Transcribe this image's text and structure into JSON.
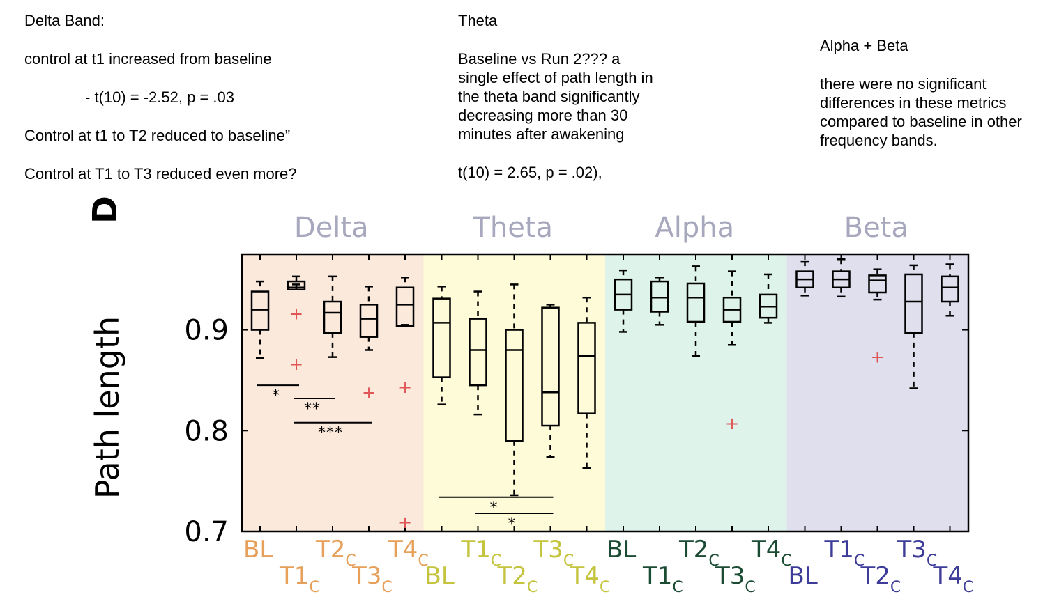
{
  "notes": {
    "delta": {
      "heading": "Delta Band:",
      "line1": "control at t1 increased from baseline",
      "line2": "- t(10) = -2.52, p = .03",
      "line3": "Control at t1 to T2 reduced to baseline”",
      "line4": "Control at T1 to T3 reduced even more?"
    },
    "theta": {
      "heading": "Theta",
      "body_lines": [
        "Baseline vs Run 2??? a",
        "single effect of path length in",
        "the theta band significantly",
        "decreasing more than 30",
        "minutes after awakening"
      ],
      "stat": "t(10) = 2.65, p = .02),"
    },
    "alphabeta": {
      "heading": "Alpha + Beta",
      "body_lines": [
        "there were no significant",
        "differences in these metrics",
        "compared to baseline in other",
        "frequency bands."
      ]
    }
  },
  "chart_data": {
    "type": "box",
    "panel_letter": "D",
    "ylabel": "Path length",
    "ylim": [
      0.7,
      0.975
    ],
    "yticks": [
      0.7,
      0.8,
      0.9
    ],
    "ytick_labels": [
      "0.7",
      "0.8",
      "0.9"
    ],
    "band_colors": {
      "Delta": "#fbe9dc",
      "Theta": "#fdfbd8",
      "Alpha": "#def3ea",
      "Beta": "#dfdfee"
    },
    "band_title_color": "#a7a7bd",
    "label_colors": {
      "Delta": "#e6a05a",
      "Theta": "#c4c43e",
      "Alpha": "#1b4b33",
      "Beta": "#3d3d99"
    },
    "outlier_color": "#e05555",
    "bands": [
      {
        "name": "Delta",
        "labels_top": [
          {
            "t": "BL",
            "s": ""
          },
          {
            "t": "T2",
            "s": "C"
          },
          {
            "t": "T4",
            "s": "C"
          }
        ],
        "labels_bottom": [
          {
            "t": "T1",
            "s": "C"
          },
          {
            "t": "T3",
            "s": "C"
          }
        ],
        "boxes": [
          {
            "label": "BL",
            "wlo": 0.872,
            "q1": 0.9,
            "med": 0.92,
            "q3": 0.938,
            "whi": 0.948,
            "outliers": []
          },
          {
            "label": "T1",
            "wlo": 0.945,
            "q1": 0.94,
            "med": 0.942,
            "q3": 0.948,
            "whi": 0.953,
            "outliers": [
              0.916,
              0.866
            ]
          },
          {
            "label": "T2",
            "wlo": 0.873,
            "q1": 0.897,
            "med": 0.917,
            "q3": 0.928,
            "whi": 0.953,
            "outliers": []
          },
          {
            "label": "T3",
            "wlo": 0.88,
            "q1": 0.893,
            "med": 0.911,
            "q3": 0.925,
            "whi": 0.943,
            "outliers": [
              0.838
            ]
          },
          {
            "label": "T4",
            "wlo": 0.905,
            "q1": 0.904,
            "med": 0.925,
            "q3": 0.942,
            "whi": 0.952,
            "outliers": [
              0.843,
              0.709
            ]
          }
        ]
      },
      {
        "name": "Theta",
        "labels_top": [
          {
            "t": "T1",
            "s": "C"
          },
          {
            "t": "T3",
            "s": "C"
          }
        ],
        "labels_bottom": [
          {
            "t": "BL",
            "s": ""
          },
          {
            "t": "T2",
            "s": "C"
          },
          {
            "t": "T4",
            "s": "C"
          }
        ],
        "boxes": [
          {
            "label": "BL",
            "wlo": 0.826,
            "q1": 0.853,
            "med": 0.907,
            "q3": 0.931,
            "whi": 0.943,
            "outliers": []
          },
          {
            "label": "T1",
            "wlo": 0.816,
            "q1": 0.845,
            "med": 0.88,
            "q3": 0.911,
            "whi": 0.938,
            "outliers": []
          },
          {
            "label": "T2",
            "wlo": 0.736,
            "q1": 0.79,
            "med": 0.88,
            "q3": 0.9,
            "whi": 0.945,
            "outliers": []
          },
          {
            "label": "T3",
            "wlo": 0.774,
            "q1": 0.805,
            "med": 0.838,
            "q3": 0.922,
            "whi": 0.925,
            "outliers": []
          },
          {
            "label": "T4",
            "wlo": 0.763,
            "q1": 0.817,
            "med": 0.874,
            "q3": 0.907,
            "whi": 0.932,
            "outliers": []
          }
        ]
      },
      {
        "name": "Alpha",
        "labels_top": [
          {
            "t": "BL",
            "s": ""
          },
          {
            "t": "T2",
            "s": "C"
          },
          {
            "t": "T4",
            "s": "C"
          }
        ],
        "labels_bottom": [
          {
            "t": "T1",
            "s": "C"
          },
          {
            "t": "T3",
            "s": "C"
          }
        ],
        "boxes": [
          {
            "label": "BL",
            "wlo": 0.898,
            "q1": 0.92,
            "med": 0.935,
            "q3": 0.95,
            "whi": 0.959,
            "outliers": []
          },
          {
            "label": "T1",
            "wlo": 0.905,
            "q1": 0.918,
            "med": 0.932,
            "q3": 0.948,
            "whi": 0.952,
            "outliers": []
          },
          {
            "label": "T2",
            "wlo": 0.874,
            "q1": 0.908,
            "med": 0.932,
            "q3": 0.946,
            "whi": 0.963,
            "outliers": []
          },
          {
            "label": "T3",
            "wlo": 0.885,
            "q1": 0.908,
            "med": 0.92,
            "q3": 0.932,
            "whi": 0.958,
            "outliers": [
              0.807
            ]
          },
          {
            "label": "T4",
            "wlo": 0.907,
            "q1": 0.912,
            "med": 0.923,
            "q3": 0.935,
            "whi": 0.955,
            "outliers": []
          }
        ]
      },
      {
        "name": "Beta",
        "labels_top": [
          {
            "t": "T1",
            "s": "C"
          },
          {
            "t": "T3",
            "s": "C"
          }
        ],
        "labels_bottom": [
          {
            "t": "BL",
            "s": ""
          },
          {
            "t": "T2",
            "s": "C"
          },
          {
            "t": "T4",
            "s": "C"
          }
        ],
        "boxes": [
          {
            "label": "BL",
            "wlo": 0.934,
            "q1": 0.942,
            "med": 0.95,
            "q3": 0.958,
            "whi": 0.968,
            "outliers": []
          },
          {
            "label": "T1",
            "wlo": 0.933,
            "q1": 0.942,
            "med": 0.95,
            "q3": 0.958,
            "whi": 0.97,
            "outliers": []
          },
          {
            "label": "T2",
            "wlo": 0.93,
            "q1": 0.937,
            "med": 0.949,
            "q3": 0.954,
            "whi": 0.96,
            "outliers": [
              0.873
            ]
          },
          {
            "label": "T3",
            "wlo": 0.842,
            "q1": 0.897,
            "med": 0.928,
            "q3": 0.955,
            "whi": 0.964,
            "outliers": []
          },
          {
            "label": "T4",
            "wlo": 0.914,
            "q1": 0.928,
            "med": 0.942,
            "q3": 0.953,
            "whi": 0.965,
            "outliers": []
          }
        ]
      }
    ],
    "significance": [
      {
        "band": "Delta",
        "from": 0,
        "to": 1,
        "y": 0.845,
        "stars": "*"
      },
      {
        "band": "Delta",
        "from": 1,
        "to": 2,
        "y": 0.832,
        "stars": "**"
      },
      {
        "band": "Delta",
        "from": 1,
        "to": 3,
        "y": 0.808,
        "stars": "***"
      },
      {
        "band": "Theta",
        "from": 0,
        "to": 3,
        "y": 0.734,
        "stars": "*"
      },
      {
        "band": "Theta",
        "from": 1,
        "to": 3,
        "y": 0.718,
        "stars": "*"
      }
    ]
  }
}
